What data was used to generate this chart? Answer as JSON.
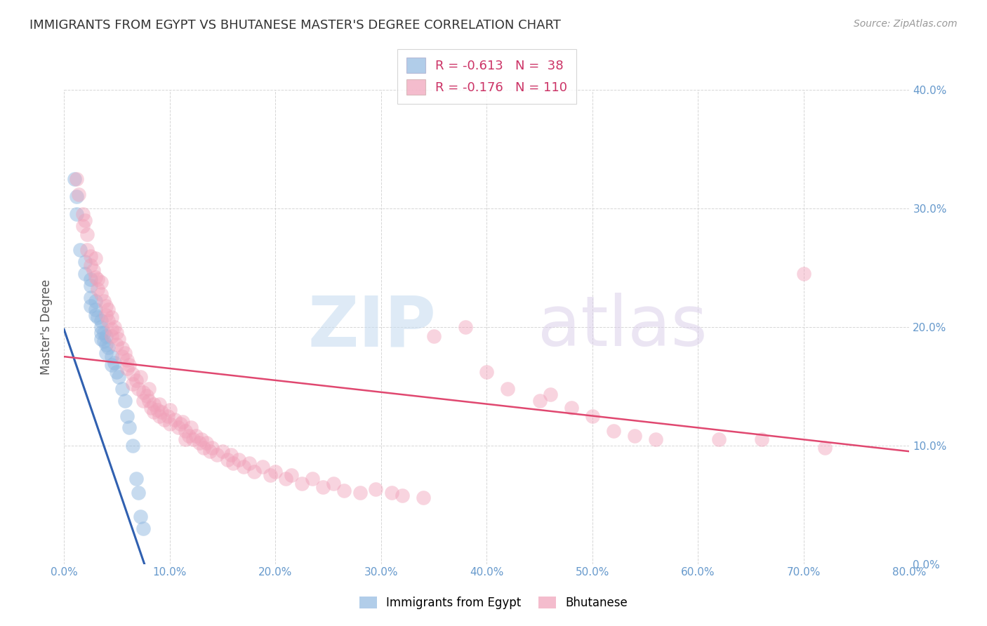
{
  "title": "IMMIGRANTS FROM EGYPT VS BHUTANESE MASTER'S DEGREE CORRELATION CHART",
  "source": "Source: ZipAtlas.com",
  "ylabel_left": "Master's Degree",
  "xlim": [
    0.0,
    0.8
  ],
  "ylim": [
    0.0,
    0.4
  ],
  "xticks": [
    0.0,
    0.1,
    0.2,
    0.3,
    0.4,
    0.5,
    0.6,
    0.7,
    0.8
  ],
  "yticks": [
    0.0,
    0.1,
    0.2,
    0.3,
    0.4
  ],
  "xtick_labels": [
    "0.0%",
    "10.0%",
    "20.0%",
    "30.0%",
    "40.0%",
    "50.0%",
    "60.0%",
    "70.0%",
    "80.0%"
  ],
  "ytick_labels_right": [
    "0.0%",
    "10.0%",
    "20.0%",
    "30.0%",
    "40.0%"
  ],
  "legend_r_blue": "R = -0.613",
  "legend_n_blue": "N =  38",
  "legend_r_pink": "R = -0.176",
  "legend_n_pink": "N = 110",
  "blue_color": "#90b8e0",
  "pink_color": "#f0a0b8",
  "blue_line_color": "#3060b0",
  "pink_line_color": "#e04870",
  "axis_tick_color": "#6699cc",
  "grid_color": "#cccccc",
  "title_color": "#333333",
  "source_color": "#999999",
  "blue_points": [
    [
      0.01,
      0.325
    ],
    [
      0.012,
      0.31
    ],
    [
      0.012,
      0.295
    ],
    [
      0.015,
      0.265
    ],
    [
      0.02,
      0.255
    ],
    [
      0.02,
      0.245
    ],
    [
      0.025,
      0.24
    ],
    [
      0.025,
      0.235
    ],
    [
      0.025,
      0.225
    ],
    [
      0.025,
      0.218
    ],
    [
      0.03,
      0.222
    ],
    [
      0.03,
      0.215
    ],
    [
      0.03,
      0.21
    ],
    [
      0.032,
      0.208
    ],
    [
      0.035,
      0.205
    ],
    [
      0.035,
      0.2
    ],
    [
      0.035,
      0.195
    ],
    [
      0.035,
      0.19
    ],
    [
      0.038,
      0.195
    ],
    [
      0.038,
      0.188
    ],
    [
      0.04,
      0.192
    ],
    [
      0.04,
      0.185
    ],
    [
      0.04,
      0.178
    ],
    [
      0.042,
      0.183
    ],
    [
      0.045,
      0.175
    ],
    [
      0.045,
      0.168
    ],
    [
      0.048,
      0.17
    ],
    [
      0.05,
      0.162
    ],
    [
      0.052,
      0.158
    ],
    [
      0.055,
      0.148
    ],
    [
      0.058,
      0.138
    ],
    [
      0.06,
      0.125
    ],
    [
      0.062,
      0.115
    ],
    [
      0.065,
      0.1
    ],
    [
      0.068,
      0.072
    ],
    [
      0.07,
      0.06
    ],
    [
      0.072,
      0.04
    ],
    [
      0.075,
      0.03
    ]
  ],
  "pink_points": [
    [
      0.012,
      0.325
    ],
    [
      0.014,
      0.312
    ],
    [
      0.018,
      0.295
    ],
    [
      0.018,
      0.285
    ],
    [
      0.02,
      0.29
    ],
    [
      0.022,
      0.278
    ],
    [
      0.022,
      0.265
    ],
    [
      0.025,
      0.26
    ],
    [
      0.025,
      0.252
    ],
    [
      0.028,
      0.248
    ],
    [
      0.03,
      0.242
    ],
    [
      0.03,
      0.258
    ],
    [
      0.032,
      0.24
    ],
    [
      0.032,
      0.232
    ],
    [
      0.035,
      0.238
    ],
    [
      0.035,
      0.228
    ],
    [
      0.038,
      0.222
    ],
    [
      0.04,
      0.218
    ],
    [
      0.04,
      0.21
    ],
    [
      0.042,
      0.215
    ],
    [
      0.042,
      0.205
    ],
    [
      0.045,
      0.208
    ],
    [
      0.045,
      0.198
    ],
    [
      0.045,
      0.192
    ],
    [
      0.048,
      0.2
    ],
    [
      0.05,
      0.195
    ],
    [
      0.05,
      0.185
    ],
    [
      0.052,
      0.19
    ],
    [
      0.055,
      0.182
    ],
    [
      0.055,
      0.175
    ],
    [
      0.058,
      0.178
    ],
    [
      0.06,
      0.172
    ],
    [
      0.06,
      0.165
    ],
    [
      0.062,
      0.168
    ],
    [
      0.065,
      0.16
    ],
    [
      0.065,
      0.152
    ],
    [
      0.068,
      0.155
    ],
    [
      0.07,
      0.148
    ],
    [
      0.072,
      0.158
    ],
    [
      0.075,
      0.145
    ],
    [
      0.075,
      0.138
    ],
    [
      0.078,
      0.142
    ],
    [
      0.08,
      0.148
    ],
    [
      0.08,
      0.138
    ],
    [
      0.082,
      0.132
    ],
    [
      0.085,
      0.135
    ],
    [
      0.085,
      0.128
    ],
    [
      0.088,
      0.13
    ],
    [
      0.09,
      0.135
    ],
    [
      0.09,
      0.125
    ],
    [
      0.092,
      0.128
    ],
    [
      0.095,
      0.122
    ],
    [
      0.098,
      0.125
    ],
    [
      0.1,
      0.13
    ],
    [
      0.1,
      0.118
    ],
    [
      0.105,
      0.122
    ],
    [
      0.108,
      0.115
    ],
    [
      0.11,
      0.118
    ],
    [
      0.112,
      0.12
    ],
    [
      0.115,
      0.112
    ],
    [
      0.115,
      0.105
    ],
    [
      0.118,
      0.108
    ],
    [
      0.12,
      0.115
    ],
    [
      0.122,
      0.105
    ],
    [
      0.125,
      0.108
    ],
    [
      0.128,
      0.102
    ],
    [
      0.13,
      0.105
    ],
    [
      0.132,
      0.098
    ],
    [
      0.135,
      0.102
    ],
    [
      0.138,
      0.095
    ],
    [
      0.14,
      0.098
    ],
    [
      0.145,
      0.092
    ],
    [
      0.15,
      0.095
    ],
    [
      0.155,
      0.088
    ],
    [
      0.158,
      0.092
    ],
    [
      0.16,
      0.085
    ],
    [
      0.165,
      0.088
    ],
    [
      0.17,
      0.082
    ],
    [
      0.175,
      0.085
    ],
    [
      0.18,
      0.078
    ],
    [
      0.188,
      0.082
    ],
    [
      0.195,
      0.075
    ],
    [
      0.2,
      0.078
    ],
    [
      0.21,
      0.072
    ],
    [
      0.215,
      0.075
    ],
    [
      0.225,
      0.068
    ],
    [
      0.235,
      0.072
    ],
    [
      0.245,
      0.065
    ],
    [
      0.255,
      0.068
    ],
    [
      0.265,
      0.062
    ],
    [
      0.28,
      0.06
    ],
    [
      0.295,
      0.063
    ],
    [
      0.31,
      0.06
    ],
    [
      0.32,
      0.058
    ],
    [
      0.34,
      0.056
    ],
    [
      0.35,
      0.192
    ],
    [
      0.38,
      0.2
    ],
    [
      0.4,
      0.162
    ],
    [
      0.42,
      0.148
    ],
    [
      0.45,
      0.138
    ],
    [
      0.46,
      0.143
    ],
    [
      0.48,
      0.132
    ],
    [
      0.5,
      0.125
    ],
    [
      0.52,
      0.112
    ],
    [
      0.54,
      0.108
    ],
    [
      0.56,
      0.105
    ],
    [
      0.62,
      0.105
    ],
    [
      0.66,
      0.105
    ],
    [
      0.7,
      0.245
    ],
    [
      0.72,
      0.098
    ]
  ],
  "blue_line_x": [
    0.0,
    0.078
  ],
  "blue_line_y": [
    0.198,
    -0.005
  ],
  "pink_line_x": [
    0.0,
    0.8
  ],
  "pink_line_y": [
    0.175,
    0.095
  ]
}
